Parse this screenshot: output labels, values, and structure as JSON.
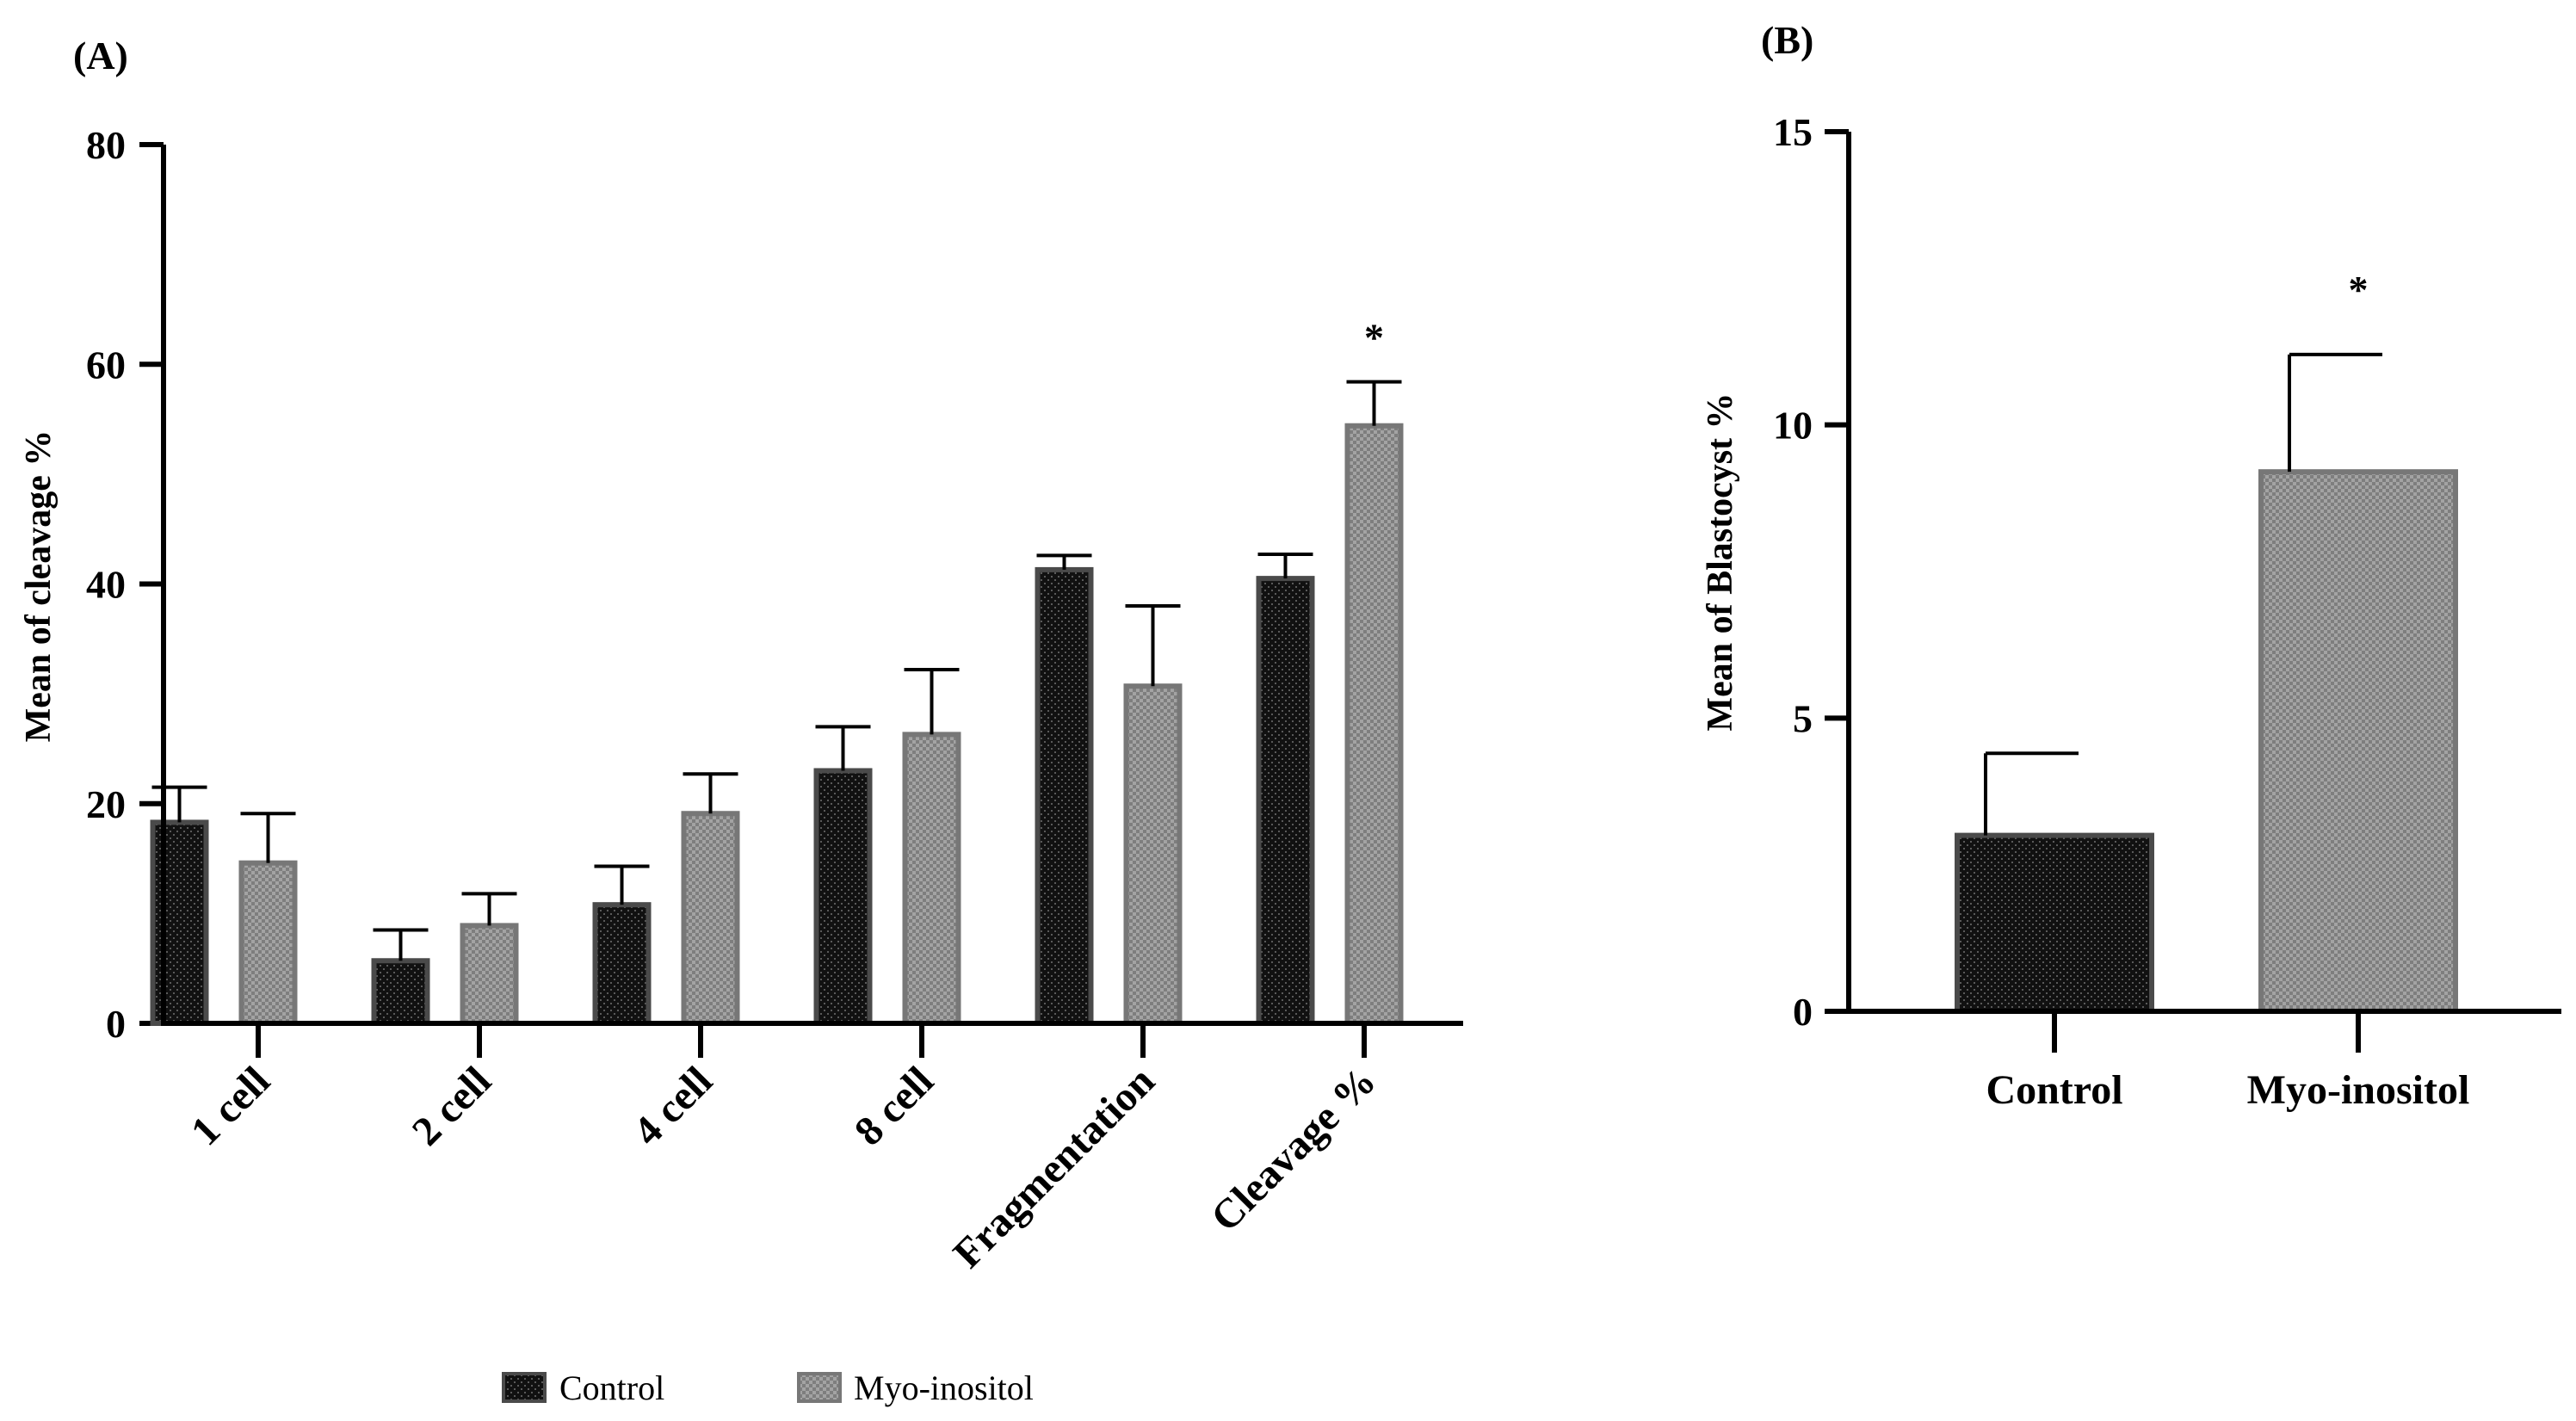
{
  "chart_data": [
    {
      "panel": "(A)",
      "type": "bar",
      "ylabel": "Mean of cleavage %",
      "ylim": [
        0,
        80
      ],
      "yticks": [
        0,
        20,
        40,
        60,
        80
      ],
      "categories": [
        "1 cell",
        "2 cell",
        "4 cell",
        "8 cell",
        "Fragmentation",
        "Cleavage %"
      ],
      "series": [
        {
          "name": "Control",
          "values": [
            18.3,
            5.7,
            10.8,
            23.0,
            41.3,
            40.5
          ],
          "errors": [
            3.2,
            2.8,
            3.5,
            4.0,
            1.3,
            2.2
          ],
          "color": "#1a1a1a"
        },
        {
          "name": "Myo-inositol",
          "values": [
            14.6,
            8.9,
            19.1,
            26.3,
            30.7,
            54.4
          ],
          "errors": [
            4.5,
            2.9,
            3.6,
            5.9,
            7.3,
            4.0
          ],
          "color": "#8a8a8a"
        }
      ],
      "significance": [
        {
          "category": "Cleavage %",
          "series": "Myo-inositol",
          "mark": "*"
        }
      ],
      "legend": {
        "position": "bottom",
        "entries": [
          "Control",
          "Myo-inositol"
        ]
      }
    },
    {
      "panel": "(B)",
      "type": "bar",
      "ylabel": "Mean of Blastocyst %",
      "ylim": [
        0,
        15
      ],
      "yticks": [
        0,
        5,
        10,
        15
      ],
      "categories": [
        "Control",
        "Myo-inositol"
      ],
      "values": [
        3.0,
        9.2
      ],
      "errors": [
        1.4,
        2.0
      ],
      "colors": [
        "#1a1a1a",
        "#8a8a8a"
      ],
      "significance": [
        {
          "category": "Myo-inositol",
          "mark": "*"
        }
      ]
    }
  ]
}
